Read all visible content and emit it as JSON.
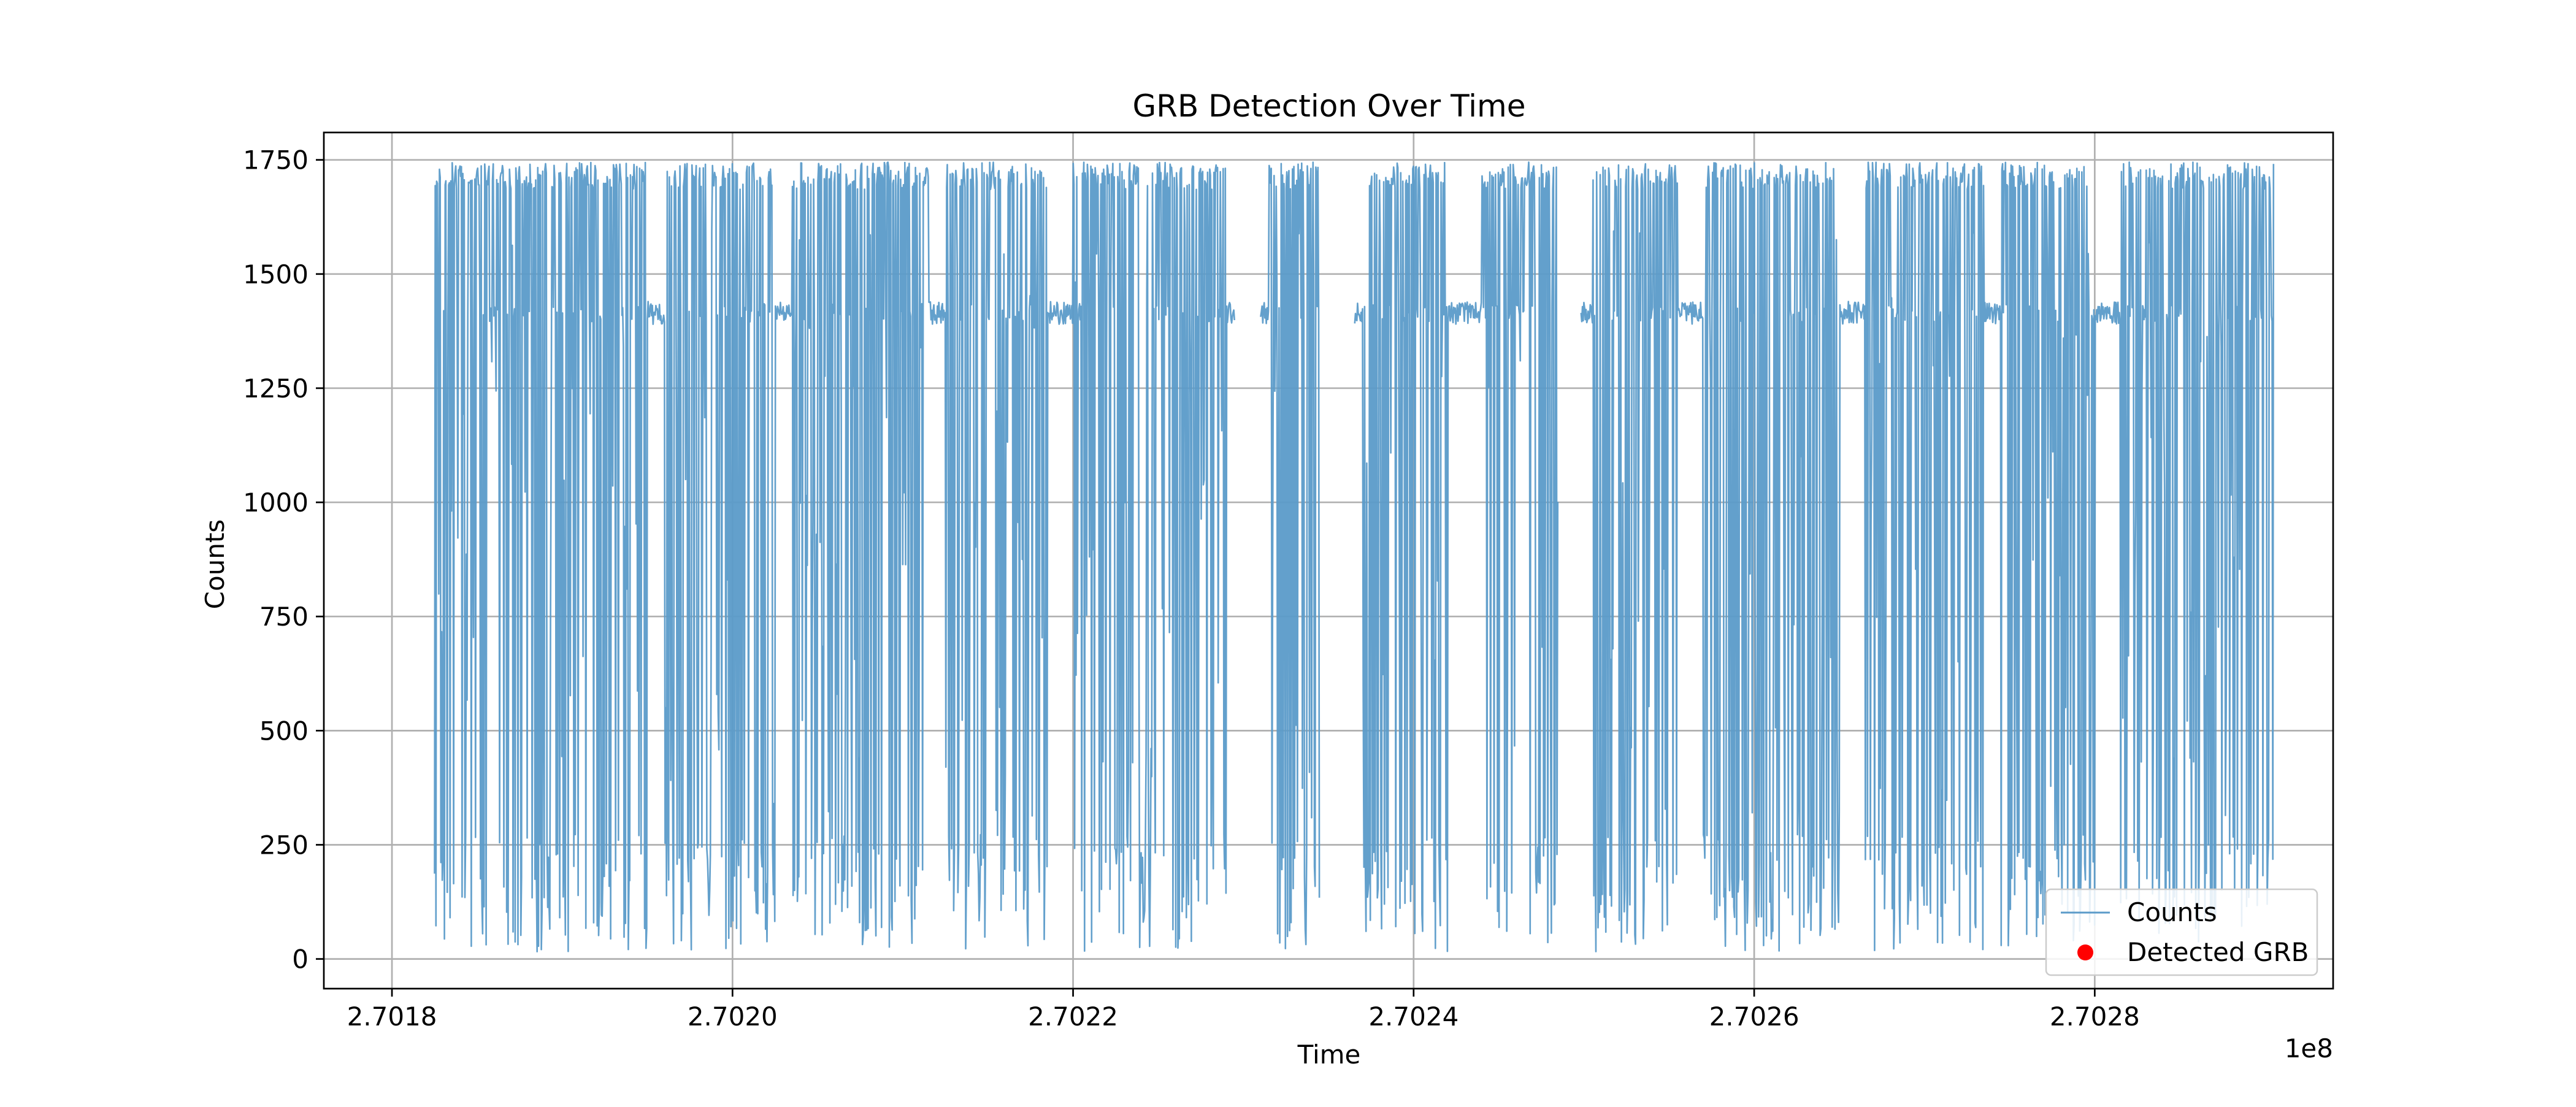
{
  "chart_data": {
    "type": "line",
    "title": "GRB Detection Over Time",
    "xlabel": "Time",
    "ylabel": "Counts",
    "x_offset_label": "1e8",
    "xlim": [
      2.70176,
      2.70294
    ],
    "ylim": [
      -65,
      1810
    ],
    "xticks": [
      2.7018,
      2.702,
      2.7022,
      2.7024,
      2.7026,
      2.7028
    ],
    "xtick_labels": [
      "2.7018",
      "2.7020",
      "2.7022",
      "2.7024",
      "2.7026",
      "2.7028"
    ],
    "yticks": [
      0,
      250,
      500,
      750,
      1000,
      1250,
      1500,
      1750
    ],
    "ytick_labels": [
      "0",
      "250",
      "500",
      "750",
      "1000",
      "1250",
      "1500",
      "1750"
    ],
    "grid": true,
    "legend": {
      "placement": "lower right",
      "entries": [
        "Counts",
        "Detected GRB"
      ]
    },
    "series": [
      {
        "name": "Counts",
        "kind": "line",
        "color": "#5b9bc9",
        "x_start": 2.701825,
        "x_end": 2.702905,
        "baseline": 1415,
        "max": 1745,
        "min": 15,
        "active_intervals": [
          [
            2.701825,
            2.701862
          ],
          [
            2.701862,
            2.70195
          ],
          [
            2.70196,
            2.702025
          ],
          [
            2.702035,
            2.702115
          ],
          [
            2.702125,
            2.702185
          ],
          [
            2.7022,
            2.70229
          ],
          [
            2.702315,
            2.702345
          ],
          [
            2.70237,
            2.70242
          ],
          [
            2.70244,
            2.702485
          ],
          [
            2.702505,
            2.702555
          ],
          [
            2.70257,
            2.70265
          ],
          [
            2.702665,
            2.702735
          ],
          [
            2.702745,
            2.7028
          ],
          [
            2.702815,
            2.702905
          ]
        ],
        "gaps": [
          [
            2.702295,
            2.70231
          ],
          [
            2.702345,
            2.702365
          ],
          [
            2.702485,
            2.702498
          ]
        ]
      },
      {
        "name": "Detected GRB",
        "kind": "scatter",
        "color": "#ff0000",
        "points": []
      }
    ]
  },
  "colors": {
    "grid": "#b0b0b0",
    "axes": "#000000",
    "background": "#ffffff"
  }
}
